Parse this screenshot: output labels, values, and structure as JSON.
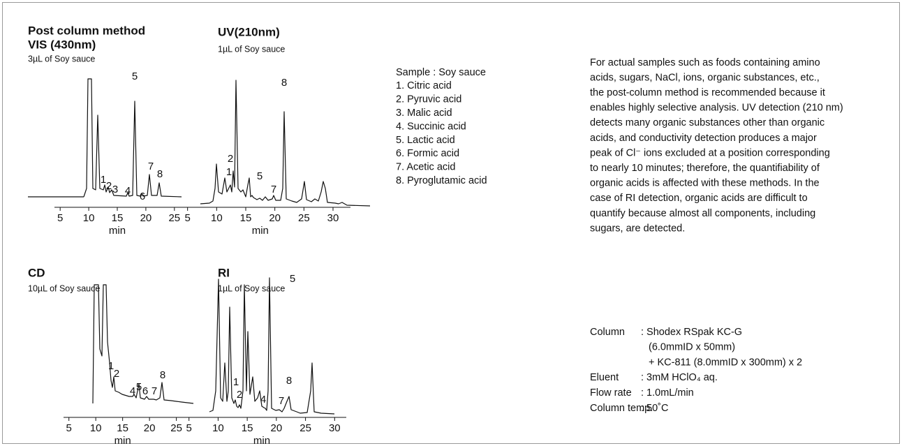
{
  "panels": [
    {
      "title": [
        "Post column method",
        "VIS (430nm)"
      ],
      "sample": "3µL of Soy sauce",
      "xlabel": "min",
      "xlim": [
        4,
        26
      ],
      "xticks": [
        5,
        10,
        15,
        20,
        25
      ],
      "peak_labels": [
        1,
        2,
        3,
        4,
        5,
        6,
        7,
        8
      ]
    },
    {
      "title": [
        "UV(210nm)"
      ],
      "sample": "1µL of Soy sauce",
      "xlabel": "min",
      "xlim": [
        3,
        33
      ],
      "xticks": [
        5,
        10,
        15,
        20,
        25,
        30
      ],
      "peak_labels": [
        2,
        1,
        5,
        7,
        8
      ]
    },
    {
      "title": [
        "CD"
      ],
      "sample": "10µL of Soy sauce",
      "xlabel": "min",
      "xlim": [
        4,
        27
      ],
      "xticks": [
        5,
        10,
        15,
        20,
        25
      ],
      "peak_labels": [
        1,
        2,
        5,
        4,
        6,
        7,
        8
      ]
    },
    {
      "title": [
        "RI"
      ],
      "sample": "1µL of Soy sauce",
      "xlabel": "min",
      "xlim": [
        3,
        32
      ],
      "xticks": [
        5,
        10,
        15,
        20,
        25,
        30
      ],
      "peak_labels": [
        5,
        1,
        2,
        4,
        7,
        8
      ]
    }
  ],
  "sample_list": [
    "Sample : Soy sauce",
    "1. Citric acid",
    "2. Pyruvic acid",
    "3. Malic acid",
    "4. Succinic acid",
    "5. Lactic acid",
    "6. Formic acid",
    "7. Acetic acid",
    "8. Pyroglutamic acid"
  ],
  "description": [
    "For actual samples such as foods containing amino",
    "acids, sugars, NaCl, ions, organic substances, etc.,",
    "the post-column method is recommended because it",
    "enables highly selective analysis. UV detection (210 nm)",
    "detects many organic substances other than organic",
    "acids, and conductivity detection produces a major",
    "peak of Cl⁻ ions excluded at a position corresponding",
    "to nearly 10 minutes; therefore, the quantifiability of",
    "organic acids is affected with these methods.  In the",
    "case of RI detection, organic acids are difficult to",
    "quantify because almost all components, including",
    "sugars, are detected."
  ],
  "conditions": [
    {
      "label": "Column",
      "value": [
        ": Shodex RSpak KC-G",
        "(6.0mmID x 50mm)",
        "+ KC-811 (8.0mmID x 300mm) x 2"
      ]
    },
    {
      "label": "Eluent",
      "value": [
        ": 3mM HClO₄ aq."
      ]
    },
    {
      "label": "Flow rate",
      "value": [
        ": 1.0mL/min"
      ]
    },
    {
      "label": "Column temp.",
      "value": [
        ": 50˚C"
      ]
    }
  ]
}
